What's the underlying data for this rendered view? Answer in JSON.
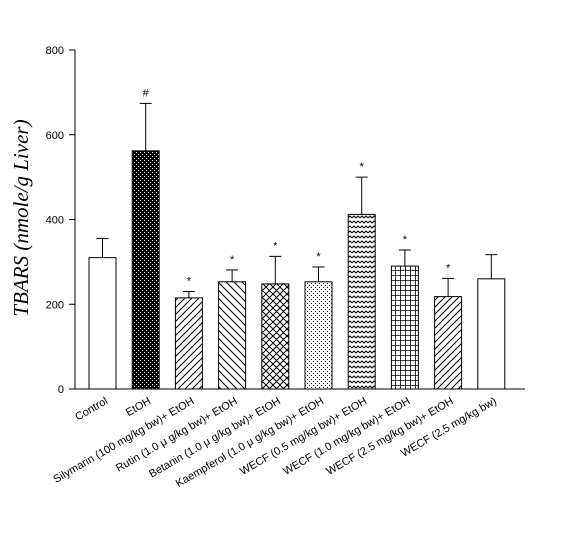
{
  "chart_data": {
    "type": "bar",
    "ylabel": "TBARS (nmole/g Liver)",
    "ylim": [
      0,
      800
    ],
    "yticks": [
      0,
      200,
      400,
      600,
      800
    ],
    "grid": false,
    "categories": [
      "Control",
      "EtOH",
      "Silymarin (100 mg/kg bw)+ EtOH",
      "Rutin (1.0 μ  g/kg bw)+ EtOH",
      "Betanin (1.0 μ  g/kg bw)+ EtOH",
      "Kaempferol (1.0 μ  g/kg bw)+ EtOH",
      "WECF (0.5 mg/kg bw)+ EtOH",
      "WECF (1.0 mg/kg bw)+ EtOH",
      "WECF (2.5 mg/kg bw)+ EtOH",
      "WECF (2.5 mg/kg bw)"
    ],
    "values": [
      310,
      562,
      215,
      253,
      248,
      253,
      412,
      290,
      218,
      260
    ],
    "errors": [
      45,
      112,
      15,
      28,
      65,
      35,
      88,
      38,
      43,
      57
    ],
    "significance": [
      "",
      "#",
      "*",
      "*",
      "*",
      "*",
      "*",
      "*",
      "*",
      ""
    ],
    "patterns": [
      "white",
      "checker",
      "back-diagonal",
      "forward-diagonal",
      "crosshatch",
      "dots",
      "zigzag",
      "grid",
      "back-diagonal",
      "white"
    ]
  }
}
